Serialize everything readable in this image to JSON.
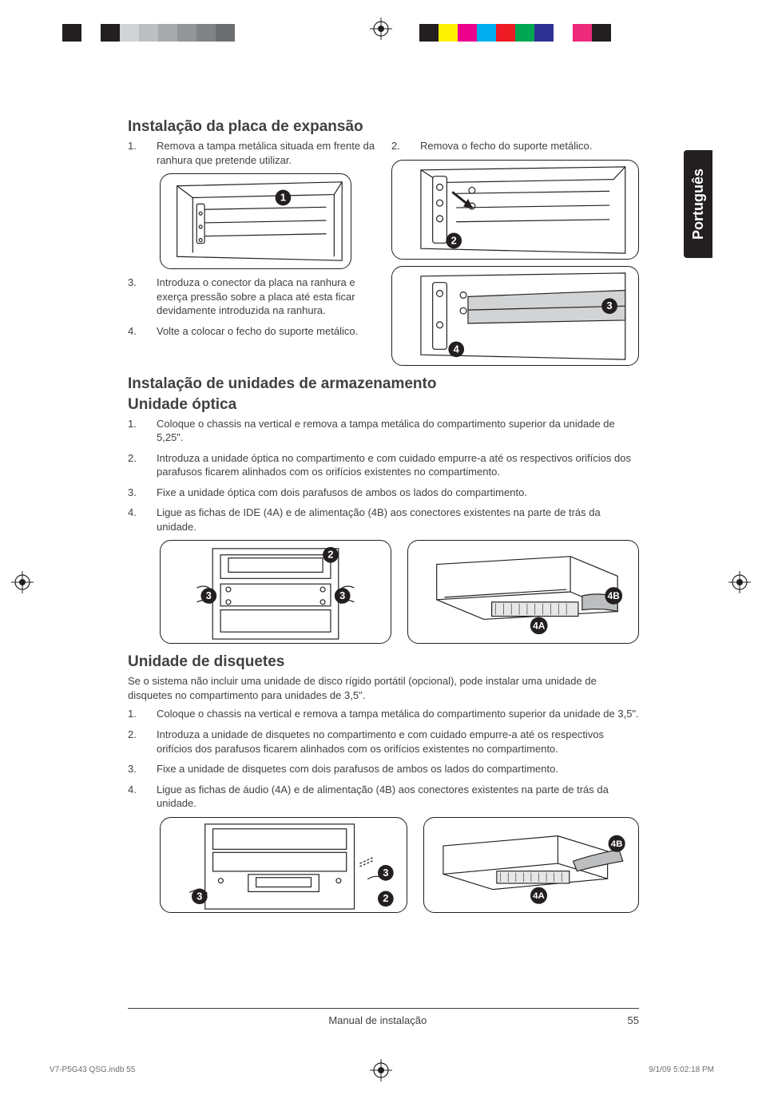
{
  "calibration": {
    "left_colors": [
      "#231f20",
      "#ffffff",
      "#231f20",
      "#d1d3d4",
      "#bcbec0",
      "#a7a9ac",
      "#939598",
      "#808285",
      "#6d6e71"
    ],
    "right_colors": [
      "#231f20",
      "#fff200",
      "#ec008c",
      "#00aeef",
      "#ed1c24",
      "#00a651",
      "#2e3192",
      "#ffffff",
      "#ee2a7b",
      "#231f20"
    ]
  },
  "language_tab": "Português",
  "sec1": {
    "title": "Instalação da placa de expansão",
    "left_steps": [
      {
        "n": "1.",
        "t": "Remova a tampa metálica situada em frente da ranhura que pretende utilizar."
      },
      {
        "n": "3.",
        "t": "Introduza o conector da placa na ranhura e exerça pressão sobre a placa até esta ficar devidamente introduzida na ranhura."
      },
      {
        "n": "4.",
        "t": "Volte a colocar o fecho do suporte metálico."
      }
    ],
    "right_steps": [
      {
        "n": "2.",
        "t": "Remova o fecho do suporte metálico."
      }
    ],
    "fig_labels": {
      "a": "1",
      "b": "2",
      "c": "3",
      "d": "4"
    }
  },
  "sec2": {
    "title": "Instalação de unidades de armazenamento",
    "sub": "Unidade óptica",
    "steps": [
      {
        "n": "1.",
        "t": "Coloque o chassis na vertical e remova a tampa metálica do compartimento superior da unidade de 5,25\"."
      },
      {
        "n": "2.",
        "t": "Introduza a unidade óptica no compartimento e com cuidado empurre-a até os respectivos orifícios dos parafusos ficarem alinhados com os orifícios existentes no compartimento."
      },
      {
        "n": "3.",
        "t": "Fixe a unidade óptica com dois parafusos de ambos os lados do compartimento."
      },
      {
        "n": "4.",
        "t": "Ligue as fichas de IDE (4A) e de alimentação (4B) aos conectores existentes na parte de trás da unidade."
      }
    ],
    "fig_labels": {
      "a": "2",
      "b": "3",
      "c": "3",
      "d": "4A",
      "e": "4B"
    }
  },
  "sec3": {
    "title": "Unidade de disquetes",
    "intro": "Se o sistema não incluir uma unidade de disco rígido portátil (opcional), pode instalar uma unidade de disquetes no compartimento para unidades de 3,5\".",
    "steps": [
      {
        "n": "1.",
        "t": "Coloque o chassis na vertical e remova a tampa metálica do compartimento superior da unidade de 3,5\"."
      },
      {
        "n": "2.",
        "t": "Introduza a unidade de disquetes no compartimento e com cuidado empurre-a até os respectivos orifícios dos parafusos ficarem alinhados com os orifícios existentes no compartimento."
      },
      {
        "n": "3.",
        "t": "Fixe a unidade de disquetes com dois parafusos de ambos os lados do compartimento."
      },
      {
        "n": "4.",
        "t": "Ligue as fichas de áudio (4A) e de alimentação (4B) aos conectores existentes na parte de trás da unidade."
      }
    ],
    "fig_labels": {
      "a": "3",
      "b": "3",
      "c": "2",
      "d": "4A",
      "e": "4B"
    }
  },
  "footer": {
    "center": "Manual de instalação",
    "page": "55",
    "file": "V7-P5G43 QSG.indb   55",
    "stamp": "9/1/09   5:02:18 PM"
  }
}
